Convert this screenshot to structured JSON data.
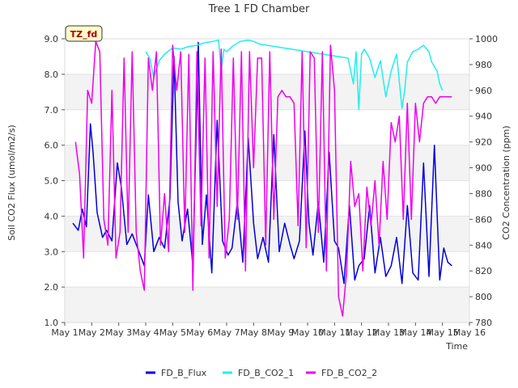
{
  "chart_data": {
    "type": "line",
    "title": "Tree 1 FD Chamber",
    "xlabel": "Time",
    "ylabel_left": "Soil CO2 Flux (umol/m2/s)",
    "ylabel_right": "CO2 Concentration (ppm)",
    "badge": "TZ_fd",
    "xlim": [
      1,
      16
    ],
    "ylim_left": [
      1.0,
      9.0
    ],
    "ylim_right": [
      780,
      1000
    ],
    "x_ticks": [
      1,
      2,
      3,
      4,
      5,
      6,
      7,
      8,
      9,
      10,
      11,
      12,
      13,
      14,
      15,
      16
    ],
    "x_tick_labels": [
      "May 1",
      "May 2",
      "May 3",
      "May 4",
      "May 5",
      "May 6",
      "May 7",
      "May 8",
      "May 9",
      "May 10",
      "May 11",
      "May 12",
      "May 13",
      "May 14",
      "May 15",
      "May 16"
    ],
    "y_left_ticks": [
      1.0,
      2.0,
      3.0,
      4.0,
      5.0,
      6.0,
      7.0,
      8.0,
      9.0
    ],
    "y_left_tick_labels": [
      "1.0",
      "2.0",
      "3.0",
      "4.0",
      "5.0",
      "6.0",
      "7.0",
      "8.0",
      "9.0"
    ],
    "y_right_ticks": [
      780,
      800,
      820,
      840,
      860,
      880,
      900,
      920,
      940,
      960,
      980,
      1000
    ],
    "y_right_tick_labels": [
      "780",
      "800",
      "820",
      "840",
      "860",
      "880",
      "900",
      "920",
      "940",
      "960",
      "980",
      "1000"
    ],
    "grid": "horizontal bands",
    "legend_position": "bottom",
    "series": [
      {
        "name": "FD_B_Flux",
        "axis": "left",
        "color": "#0000dd",
        "x": [
          1.3,
          1.5,
          1.65,
          1.8,
          1.95,
          2.05,
          2.2,
          2.4,
          2.55,
          2.75,
          2.95,
          3.1,
          3.3,
          3.5,
          3.75,
          3.95,
          4.1,
          4.3,
          4.5,
          4.7,
          4.9,
          5.05,
          5.2,
          5.35,
          5.55,
          5.75,
          5.95,
          6.1,
          6.25,
          6.45,
          6.65,
          6.85,
          7.05,
          7.2,
          7.4,
          7.6,
          7.8,
          8.0,
          8.15,
          8.35,
          8.55,
          8.75,
          8.95,
          9.15,
          9.35,
          9.5,
          9.7,
          9.9,
          10.05,
          10.2,
          10.4,
          10.6,
          10.8,
          11.0,
          11.15,
          11.35,
          11.55,
          11.75,
          11.9,
          12.1,
          12.3,
          12.5,
          12.7,
          12.9,
          13.1,
          13.3,
          13.5,
          13.7,
          13.9,
          14.1,
          14.3,
          14.5,
          14.7,
          14.9,
          15.05,
          15.2,
          15.35
        ],
        "y": [
          3.8,
          3.6,
          4.2,
          3.7,
          6.6,
          5.8,
          4.1,
          3.4,
          3.6,
          3.3,
          5.5,
          4.8,
          3.2,
          3.5,
          3.0,
          2.6,
          4.6,
          3.0,
          3.4,
          3.1,
          4.5,
          8.5,
          4.4,
          3.3,
          4.2,
          2.6,
          8.9,
          3.2,
          4.6,
          2.4,
          6.7,
          3.3,
          2.9,
          3.1,
          4.4,
          2.7,
          6.2,
          3.8,
          2.8,
          3.4,
          2.7,
          6.3,
          3.0,
          3.8,
          3.2,
          2.8,
          3.3,
          6.4,
          3.8,
          2.9,
          4.4,
          2.7,
          5.8,
          3.3,
          3.1,
          2.1,
          4.3,
          2.2,
          2.6,
          2.8,
          4.3,
          2.4,
          3.4,
          2.3,
          2.6,
          3.4,
          2.1,
          4.3,
          2.4,
          2.2,
          5.5,
          2.3,
          6.0,
          2.2,
          3.1,
          2.7,
          2.6
        ]
      },
      {
        "name": "FD_B_CO2_1",
        "axis": "right",
        "color": "#22eeee",
        "x": [
          4.0,
          4.15,
          4.3,
          4.5,
          4.7,
          5.0,
          5.3,
          5.6,
          5.9,
          6.2,
          6.5,
          6.7,
          6.8,
          6.9,
          7.0,
          7.2,
          7.5,
          7.8,
          8.0,
          8.2,
          8.5,
          8.8,
          9.1,
          9.4,
          9.7,
          10.0,
          10.3,
          10.6,
          10.9,
          11.2,
          11.5,
          11.7,
          11.8,
          11.9,
          12.0,
          12.1,
          12.3,
          12.5,
          12.7,
          12.9,
          13.1,
          13.3,
          13.5,
          13.6,
          13.7,
          13.9,
          14.1,
          14.3,
          14.5,
          14.6,
          14.8,
          14.9,
          15.0
        ],
        "y": [
          990,
          985,
          970,
          983,
          988,
          993,
          992,
          994,
          995,
          997,
          998,
          999,
          975,
          992,
          990,
          994,
          998,
          999,
          998,
          996,
          995,
          994,
          993,
          992,
          991,
          990,
          989,
          988,
          987,
          986,
          985,
          965,
          990,
          945,
          988,
          992,
          985,
          970,
          983,
          955,
          975,
          988,
          946,
          960,
          982,
          990,
          992,
          995,
          990,
          982,
          975,
          965,
          960
        ]
      },
      {
        "name": "FD_B_CO2_2",
        "axis": "right",
        "color": "#ee00ee",
        "x": [
          1.4,
          1.55,
          1.7,
          1.85,
          2.0,
          2.15,
          2.3,
          2.45,
          2.6,
          2.75,
          2.9,
          3.05,
          3.2,
          3.35,
          3.5,
          3.65,
          3.8,
          3.95,
          4.1,
          4.25,
          4.4,
          4.55,
          4.7,
          4.85,
          5.0,
          5.15,
          5.3,
          5.45,
          5.6,
          5.75,
          5.9,
          6.05,
          6.2,
          6.35,
          6.5,
          6.65,
          6.8,
          6.95,
          7.1,
          7.25,
          7.4,
          7.55,
          7.7,
          7.85,
          8.0,
          8.15,
          8.3,
          8.45,
          8.6,
          8.75,
          8.9,
          9.05,
          9.2,
          9.35,
          9.5,
          9.65,
          9.8,
          9.95,
          10.1,
          10.25,
          10.4,
          10.55,
          10.7,
          10.85,
          11.0,
          11.15,
          11.3,
          11.45,
          11.6,
          11.75,
          11.9,
          12.05,
          12.2,
          12.35,
          12.5,
          12.65,
          12.8,
          12.95,
          13.1,
          13.25,
          13.4,
          13.55,
          13.7,
          13.85,
          14.0,
          14.15,
          14.3,
          14.45,
          14.6,
          14.75,
          14.9,
          15.05,
          15.2,
          15.35
        ],
        "y": [
          920,
          895,
          830,
          960,
          950,
          998,
          990,
          860,
          840,
          960,
          830,
          850,
          985,
          850,
          990,
          850,
          820,
          805,
          985,
          960,
          990,
          840,
          880,
          835,
          995,
          960,
          990,
          850,
          988,
          805,
          990,
          855,
          985,
          830,
          990,
          870,
          992,
          830,
          860,
          985,
          860,
          990,
          820,
          990,
          900,
          985,
          985,
          840,
          990,
          860,
          955,
          960,
          955,
          955,
          950,
          855,
          990,
          838,
          990,
          985,
          850,
          990,
          820,
          995,
          960,
          800,
          785,
          820,
          905,
          870,
          880,
          820,
          885,
          855,
          890,
          840,
          905,
          860,
          935,
          920,
          940,
          860,
          950,
          860,
          950,
          920,
          950,
          955,
          955,
          950,
          955,
          955,
          955,
          955
        ]
      }
    ]
  }
}
